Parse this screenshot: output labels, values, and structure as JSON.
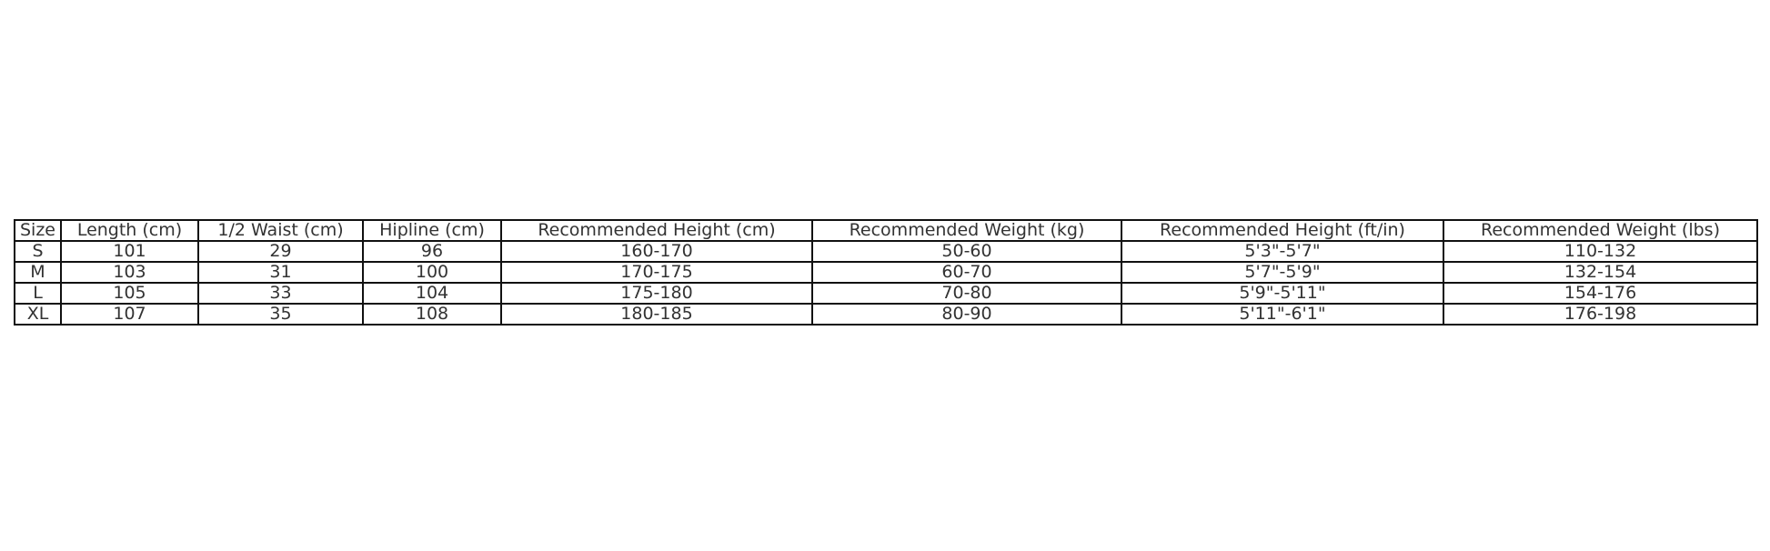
{
  "table": {
    "headers": [
      "Size",
      "Length (cm)",
      "1/2 Waist (cm)",
      "Hipline (cm)",
      "Recommended Height (cm)",
      "Recommended Weight (kg)",
      "Recommended Height (ft/in)",
      "Recommended Weight (lbs)"
    ],
    "rows": [
      [
        "S",
        "101",
        "29",
        "96",
        "160-170",
        "50-60",
        "5'3\"-5'7\"",
        "110-132"
      ],
      [
        "M",
        "103",
        "31",
        "100",
        "170-175",
        "60-70",
        "5'7\"-5'9\"",
        "132-154"
      ],
      [
        "L",
        "105",
        "33",
        "104",
        "175-180",
        "70-80",
        "5'9\"-5'11\"",
        "154-176"
      ],
      [
        "XL",
        "107",
        "35",
        "108",
        "180-185",
        "80-90",
        "5'11\"-6'1\"",
        "176-198"
      ]
    ]
  }
}
